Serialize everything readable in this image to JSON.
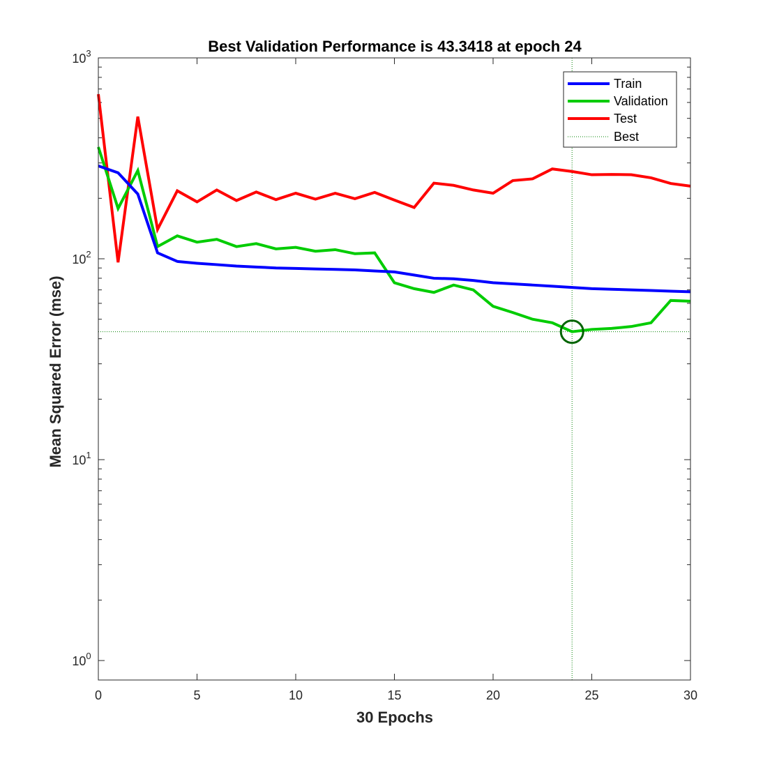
{
  "chart_data": {
    "type": "line",
    "title": "Best Validation Performance is 43.3418 at epoch 24",
    "xlabel": "30 Epochs",
    "ylabel": "Mean Squared Error  (mse)",
    "xlim": [
      0,
      30
    ],
    "ylim": [
      0.8,
      1000
    ],
    "yscale": "log",
    "x_ticks": [
      0,
      5,
      10,
      15,
      20,
      25,
      30
    ],
    "x_tick_labels": [
      "0",
      "5",
      "10",
      "15",
      "20",
      "25",
      "30"
    ],
    "y_ticks": [
      1,
      10,
      100,
      1000
    ],
    "y_tick_labels": [
      {
        "base": "10",
        "exp": "0"
      },
      {
        "base": "10",
        "exp": "1"
      },
      {
        "base": "10",
        "exp": "2"
      },
      {
        "base": "10",
        "exp": "3"
      }
    ],
    "legend_position": "top-right",
    "series": [
      {
        "name": "Train",
        "color": "#0000ff",
        "style": "solid",
        "x": [
          0,
          1,
          2,
          3,
          4,
          5,
          6,
          7,
          8,
          9,
          10,
          11,
          12,
          13,
          14,
          15,
          16,
          17,
          18,
          19,
          20,
          21,
          22,
          23,
          24,
          25,
          26,
          27,
          28,
          29,
          30
        ],
        "y": [
          290,
          268,
          210,
          107,
          97,
          95,
          93.5,
          92,
          91,
          90,
          89.5,
          89,
          88.5,
          88,
          87,
          86,
          83,
          80,
          79.5,
          78,
          76,
          75,
          74,
          73,
          72,
          71,
          70.5,
          70,
          69.5,
          69,
          68.5
        ]
      },
      {
        "name": "Validation",
        "color": "#00cc00",
        "style": "solid",
        "x": [
          0,
          1,
          2,
          3,
          4,
          5,
          6,
          7,
          8,
          9,
          10,
          11,
          12,
          13,
          14,
          15,
          16,
          17,
          18,
          19,
          20,
          21,
          22,
          23,
          24,
          25,
          26,
          27,
          28,
          29,
          30
        ],
        "y": [
          360,
          178,
          275,
          115,
          130,
          121,
          125,
          115,
          119,
          112,
          114,
          109,
          111,
          106,
          107,
          76,
          71,
          68,
          74,
          70,
          58,
          54,
          50,
          48,
          43.3418,
          44.5,
          45,
          46,
          48,
          62,
          61.5
        ]
      },
      {
        "name": "Test",
        "color": "#ff0000",
        "style": "solid",
        "x": [
          0,
          1,
          2,
          3,
          4,
          5,
          6,
          7,
          8,
          9,
          10,
          11,
          12,
          13,
          14,
          15,
          16,
          17,
          18,
          19,
          20,
          21,
          22,
          23,
          24,
          25,
          26,
          27,
          28,
          29,
          30
        ],
        "y": [
          660,
          96,
          510,
          140,
          218,
          192,
          220,
          195,
          215,
          197,
          212,
          198,
          212,
          199,
          214,
          196,
          180,
          238,
          232,
          220,
          212,
          245,
          250,
          280,
          272,
          262,
          263,
          262,
          253,
          237,
          230
        ]
      },
      {
        "name": "Best",
        "color": "#008000",
        "style": "dotted",
        "best_epoch": 24,
        "best_value": 43.3418
      }
    ]
  }
}
